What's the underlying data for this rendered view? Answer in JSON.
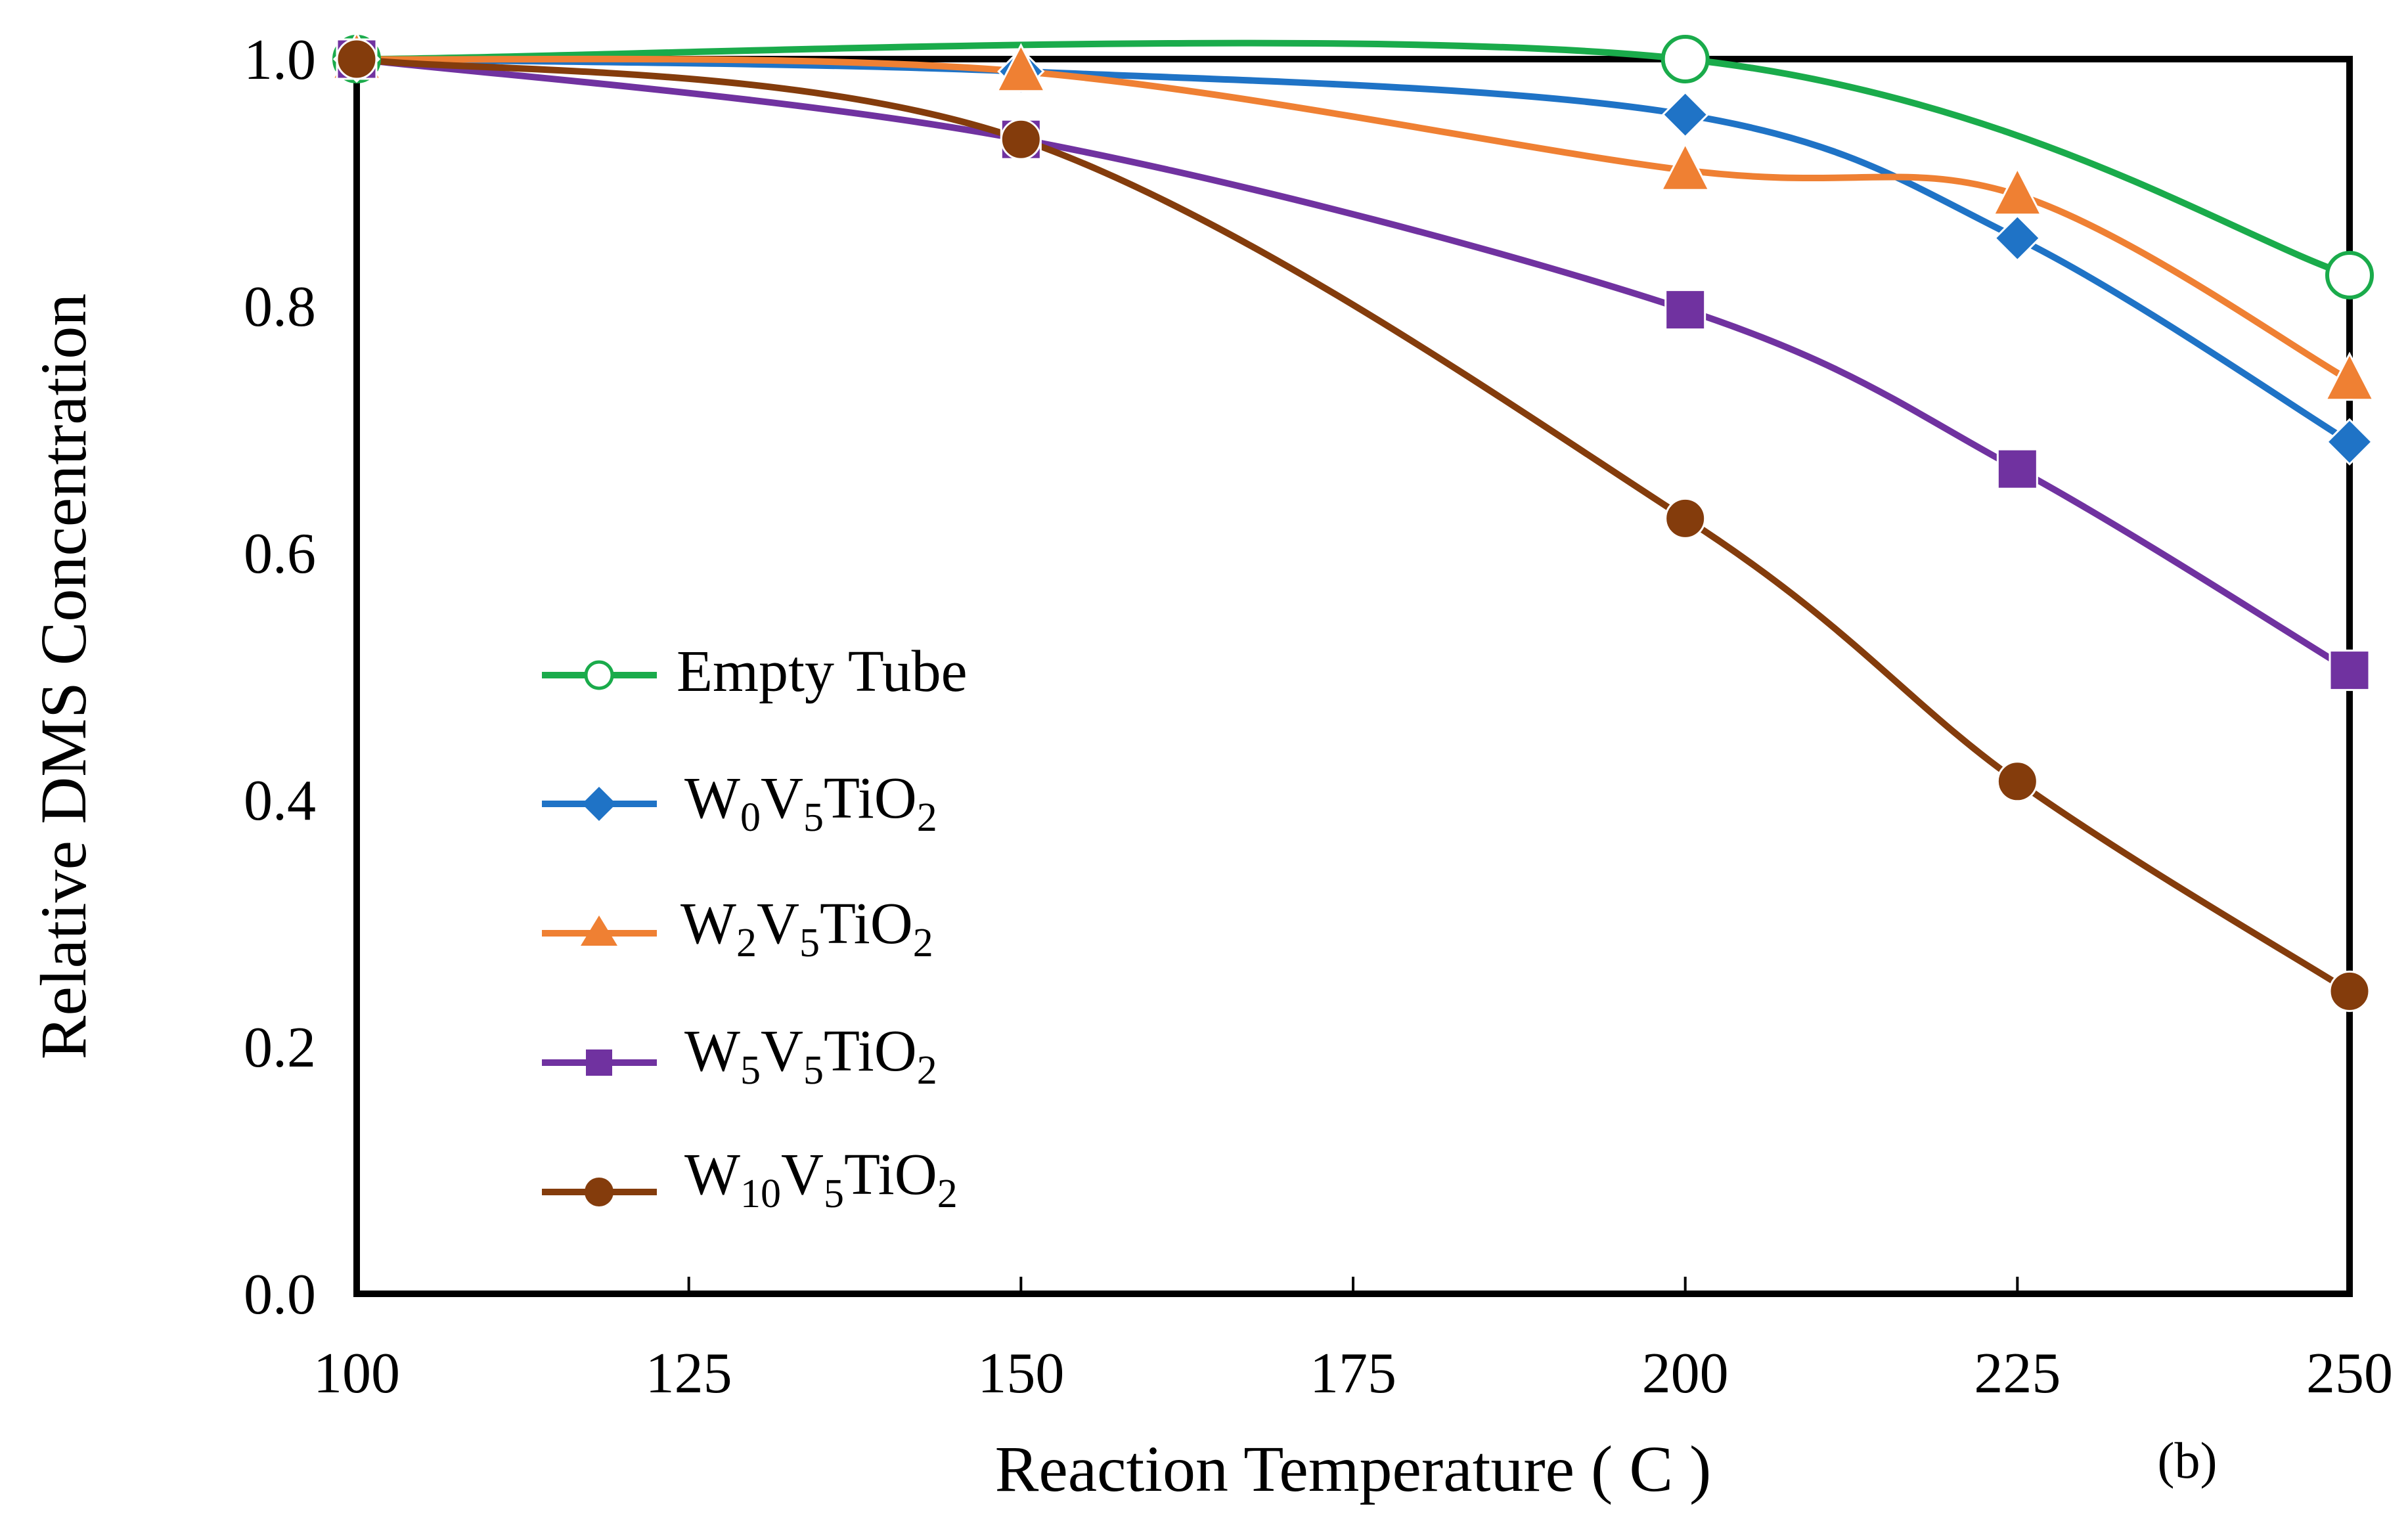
{
  "chart_data": {
    "type": "line",
    "title": "",
    "xlabel": "Reaction Temperature ( C )",
    "ylabel": "Relative DMS Concentration",
    "xlim": [
      100,
      250
    ],
    "ylim": [
      0,
      1
    ],
    "x_ticks": [
      100,
      125,
      150,
      175,
      200,
      225,
      250
    ],
    "x_tick_labels": [
      "100",
      "125",
      "150",
      "175",
      "200",
      "225",
      "250"
    ],
    "y_ticks": [
      0,
      0.2,
      0.4,
      0.6,
      0.8,
      1.0
    ],
    "y_tick_labels": [
      "0.0",
      "0.2",
      "0.4",
      "0.6",
      "0.8",
      "1.0"
    ],
    "panel_label": "(b)",
    "grid": false,
    "legend_position": "center-left",
    "series": [
      {
        "name": "Empty Tube",
        "legend": {
          "main": "Empty Tube"
        },
        "color": "#1aab4b",
        "marker": "open-circle",
        "x": [
          100,
          200,
          250
        ],
        "y": [
          1.0,
          1.0,
          0.825
        ]
      },
      {
        "name": "W0V5TiO2",
        "legend": {
          "p1": "W",
          "s1": "0",
          "p2": "V",
          "s2": "5",
          "p3": "TiO",
          "s3": "2"
        },
        "color": "#1f73c6",
        "marker": "diamond",
        "x": [
          100,
          150,
          200,
          225,
          250
        ],
        "y": [
          1.0,
          0.99,
          0.955,
          0.855,
          0.69
        ]
      },
      {
        "name": "W2V5TiO2",
        "legend": {
          "p1": "W",
          "s1": "2",
          "p2": "V",
          "s2": "5",
          "p3": "TiO",
          "s3": "2"
        },
        "color": "#ef8033",
        "marker": "triangle",
        "x": [
          100,
          150,
          200,
          225,
          250
        ],
        "y": [
          1.0,
          0.99,
          0.91,
          0.89,
          0.74
        ]
      },
      {
        "name": "W5V5TiO2",
        "legend": {
          "p1": "W",
          "s1": "5",
          "p2": "V",
          "s2": "5",
          "p3": "TiO",
          "s3": "2"
        },
        "color": "#7032a0",
        "marker": "square",
        "x": [
          100,
          150,
          200,
          225,
          250
        ],
        "y": [
          1.0,
          0.935,
          0.797,
          0.668,
          0.505
        ]
      },
      {
        "name": "W10V5TiO2",
        "legend": {
          "p1": "W",
          "s1": "10",
          "p2": "V",
          "s2": "5",
          "p3": "TiO",
          "s3": "2"
        },
        "color": "#843c0c",
        "marker": "circle",
        "x": [
          100,
          150,
          200,
          225,
          250
        ],
        "y": [
          1.0,
          0.935,
          0.628,
          0.415,
          0.245
        ]
      }
    ]
  }
}
